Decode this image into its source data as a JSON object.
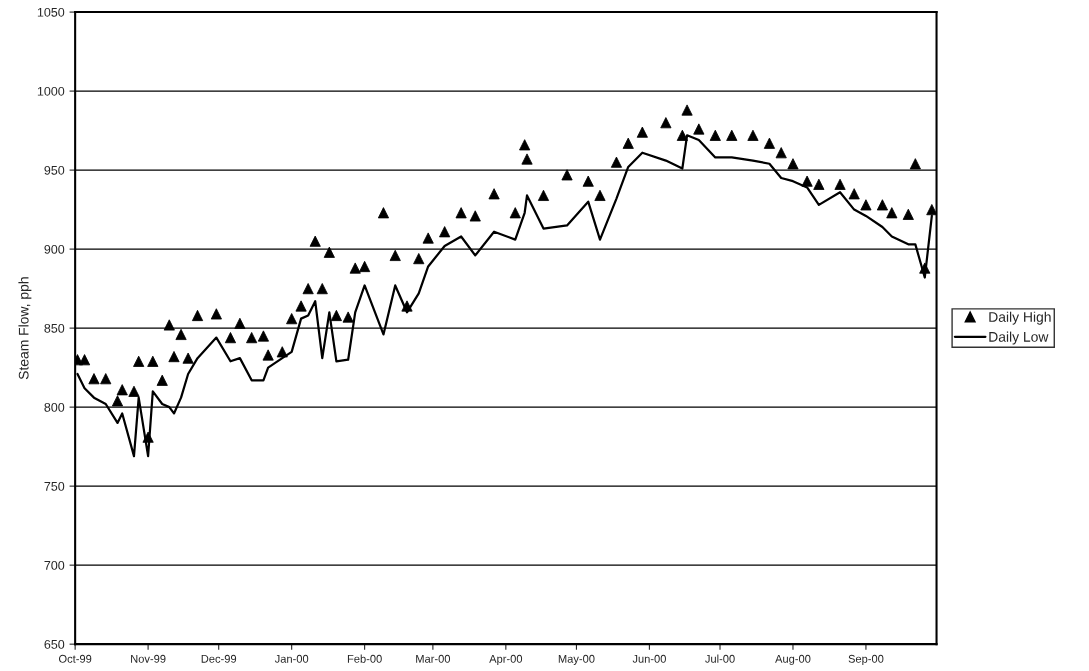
{
  "chart_data": {
    "type": "line",
    "ylabel": "Steam Flow, pph",
    "x": [
      "1999-10-02",
      "1999-10-05",
      "1999-10-09",
      "1999-10-14",
      "1999-10-19",
      "1999-10-21",
      "1999-10-26",
      "1999-10-28",
      "1999-11-01",
      "1999-11-03",
      "1999-11-07",
      "1999-11-10",
      "1999-11-12",
      "1999-11-15",
      "1999-11-18",
      "1999-11-22",
      "1999-11-30",
      "1999-12-06",
      "1999-12-10",
      "1999-12-15",
      "1999-12-20",
      "1999-12-22",
      "1999-12-28",
      "2000-01-01",
      "2000-01-05",
      "2000-01-08",
      "2000-01-11",
      "2000-01-14",
      "2000-01-17",
      "2000-01-20",
      "2000-01-25",
      "2000-01-28",
      "2000-02-01",
      "2000-02-09",
      "2000-02-14",
      "2000-02-19",
      "2000-02-24",
      "2000-02-28",
      "2000-03-06",
      "2000-03-13",
      "2000-03-19",
      "2000-03-27",
      "2000-04-05",
      "2000-04-09",
      "2000-04-10",
      "2000-04-17",
      "2000-04-27",
      "2000-05-06",
      "2000-05-11",
      "2000-05-18",
      "2000-05-23",
      "2000-05-29",
      "2000-06-08",
      "2000-06-15",
      "2000-06-17",
      "2000-06-22",
      "2000-06-29",
      "2000-07-06",
      "2000-07-15",
      "2000-07-22",
      "2000-07-27",
      "2000-08-01",
      "2000-08-07",
      "2000-08-12",
      "2000-08-21",
      "2000-08-27",
      "2000-09-01",
      "2000-09-08",
      "2000-09-12",
      "2000-09-19",
      "2000-09-22",
      "2000-09-26",
      "2000-09-29"
    ],
    "series": [
      {
        "name": "Daily High",
        "type": "scatter",
        "marker": "triangle",
        "color": "#000000",
        "values": [
          830,
          830,
          818,
          818,
          804,
          811,
          810,
          829,
          781,
          829,
          817,
          852,
          832,
          846,
          831,
          858,
          859,
          844,
          853,
          844,
          845,
          833,
          835,
          856,
          864,
          875,
          905,
          875,
          898,
          858,
          857,
          888,
          889,
          923,
          896,
          864,
          894,
          907,
          911,
          923,
          921,
          935,
          923,
          966,
          957,
          934,
          947,
          943,
          934,
          955,
          967,
          974,
          980,
          972,
          988,
          976,
          972,
          972,
          972,
          967,
          961,
          954,
          943,
          941,
          941,
          935,
          928,
          928,
          923,
          922,
          954,
          888,
          925
        ]
      },
      {
        "name": "Daily Low",
        "color": "#000000",
        "values": [
          821,
          812,
          806,
          802,
          790,
          796,
          769,
          806,
          769,
          810,
          802,
          800,
          796,
          806,
          821,
          831,
          844,
          829,
          831,
          817,
          817,
          825,
          831,
          835,
          856,
          858,
          867,
          831,
          860,
          829,
          830,
          860,
          877,
          846,
          877,
          860,
          872,
          889,
          902,
          908,
          896,
          911,
          906,
          923,
          934,
          913,
          915,
          930,
          906,
          932,
          952,
          961,
          956,
          951,
          972,
          969,
          958,
          958,
          956,
          954,
          945,
          943,
          939,
          928,
          936,
          925,
          921,
          914,
          908,
          903,
          903,
          882,
          921
        ]
      }
    ],
    "xlim": [
      "1999-10-01",
      "2000-10-01"
    ],
    "xticks": [
      {
        "value": "1999-10-01",
        "label": "Oct-99"
      },
      {
        "value": "1999-11-01",
        "label": "Nov-99"
      },
      {
        "value": "1999-12-01",
        "label": "Dec-99"
      },
      {
        "value": "2000-01-01",
        "label": "Jan-00"
      },
      {
        "value": "2000-02-01",
        "label": "Feb-00"
      },
      {
        "value": "2000-03-01",
        "label": "Mar-00"
      },
      {
        "value": "2000-04-01",
        "label": "Apr-00"
      },
      {
        "value": "2000-05-01",
        "label": "May-00"
      },
      {
        "value": "2000-06-01",
        "label": "Jun-00"
      },
      {
        "value": "2000-07-01",
        "label": "Jul-00"
      },
      {
        "value": "2000-08-01",
        "label": "Aug-00"
      },
      {
        "value": "2000-09-01",
        "label": "Sep-00"
      }
    ],
    "ylim": [
      650,
      1050
    ],
    "yticks": [
      650,
      700,
      750,
      800,
      850,
      900,
      950,
      1000,
      1050
    ],
    "grid": "y",
    "legend": "right"
  }
}
